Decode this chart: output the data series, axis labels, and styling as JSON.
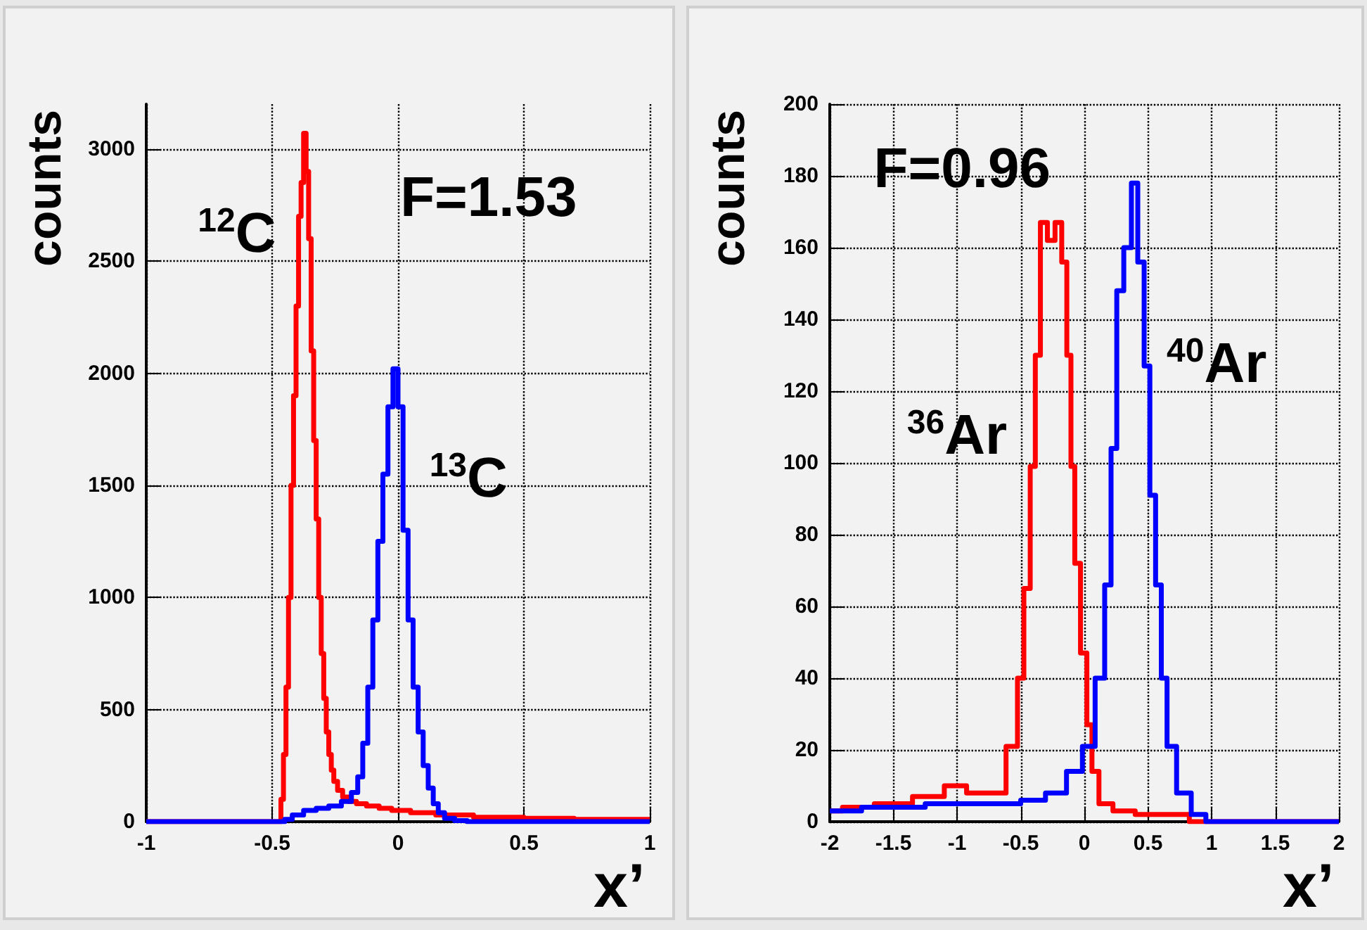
{
  "chart_data": [
    {
      "type": "step",
      "xlabel": "x’",
      "ylabel": "counts",
      "xlim": [
        -1,
        1
      ],
      "ylim": [
        0,
        3200
      ],
      "xticks": [
        -1,
        -0.5,
        0,
        0.5,
        1
      ],
      "yticks": [
        0,
        500,
        1000,
        1500,
        2000,
        2500,
        3000
      ],
      "grid": true,
      "marker": "none",
      "line_style": "solid",
      "annotations": [
        "$^{12}$C",
        "$^{13}$C",
        "F=1.53"
      ],
      "series": [
        {
          "color": "#ff0000",
          "x": [
            -1,
            -0.5,
            -0.47,
            -0.46,
            -0.45,
            -0.44,
            -0.43,
            -0.42,
            -0.41,
            -0.4,
            -0.39,
            -0.38,
            -0.37,
            -0.36,
            -0.35,
            -0.34,
            -0.33,
            -0.32,
            -0.31,
            -0.3,
            -0.29,
            -0.28,
            -0.27,
            -0.26,
            -0.25,
            -0.23,
            -0.21,
            -0.18,
            -0.15,
            -0.1,
            -0.05,
            0,
            0.1,
            0.2,
            0.4,
            0.6,
            0.8,
            1
          ],
          "values": [
            0,
            0,
            0,
            100,
            300,
            600,
            1000,
            1500,
            1900,
            2300,
            2700,
            2850,
            3070,
            2900,
            2600,
            2100,
            1700,
            1350,
            1000,
            750,
            550,
            400,
            300,
            230,
            180,
            140,
            110,
            90,
            80,
            70,
            60,
            50,
            40,
            30,
            20,
            15,
            10,
            10
          ]
        },
        {
          "color": "#0000ff",
          "x": [
            -1,
            -0.46,
            -0.44,
            -0.4,
            -0.35,
            -0.3,
            -0.25,
            -0.2,
            -0.17,
            -0.15,
            -0.13,
            -0.11,
            -0.09,
            -0.07,
            -0.05,
            -0.03,
            -0.01,
            0.01,
            0.03,
            0.05,
            0.07,
            0.09,
            0.11,
            0.13,
            0.15,
            0.17,
            0.2,
            0.25,
            0.3,
            1
          ],
          "values": [
            0,
            0,
            10,
            30,
            50,
            60,
            70,
            90,
            130,
            200,
            350,
            600,
            900,
            1250,
            1550,
            1850,
            2020,
            1850,
            1300,
            900,
            600,
            400,
            250,
            150,
            80,
            40,
            15,
            5,
            0,
            0
          ]
        }
      ]
    },
    {
      "type": "step",
      "xlabel": "x’",
      "ylabel": "counts",
      "xlim": [
        -2,
        2
      ],
      "ylim": [
        0,
        200
      ],
      "xticks": [
        -2,
        -1.5,
        -1,
        -0.5,
        0,
        0.5,
        1,
        1.5,
        2
      ],
      "yticks": [
        0,
        20,
        40,
        60,
        80,
        100,
        120,
        140,
        160,
        180,
        200
      ],
      "grid": true,
      "marker": "none",
      "line_style": "solid",
      "annotations": [
        "$^{36}$Ar",
        "$^{40}$Ar",
        "F=0.96"
      ],
      "series": [
        {
          "color": "#ff0000",
          "x": [
            -2,
            -1.8,
            -1.5,
            -1.2,
            -1,
            -0.85,
            -0.68,
            -0.55,
            -0.5,
            -0.45,
            -0.4,
            -0.37,
            -0.32,
            -0.26,
            -0.2,
            -0.155,
            -0.12,
            -0.09,
            -0.06,
            0,
            0.04,
            0.08,
            0.15,
            0.3,
            0.5,
            0.8,
            0.85,
            2
          ],
          "values": [
            3,
            4,
            5,
            7,
            10,
            8,
            8,
            21,
            40,
            65,
            99,
            130,
            167,
            162,
            167,
            156,
            130,
            99,
            72,
            47,
            27,
            14,
            5,
            3,
            2,
            2,
            0,
            0
          ]
        },
        {
          "color": "#0000ff",
          "x": [
            -2,
            -1.5,
            -1,
            -0.6,
            -0.4,
            -0.21,
            -0.07,
            0.04,
            0.13,
            0.19,
            0.23,
            0.28,
            0.34,
            0.4,
            0.44,
            0.5,
            0.53,
            0.59,
            0.62,
            0.68,
            0.77,
            0.91,
            1.0,
            2
          ],
          "values": [
            3,
            4,
            5,
            5,
            6,
            8,
            14,
            21,
            40,
            66,
            104,
            148,
            160,
            178,
            156,
            127,
            91,
            66,
            40,
            21,
            8,
            2,
            0,
            0
          ]
        }
      ]
    }
  ]
}
